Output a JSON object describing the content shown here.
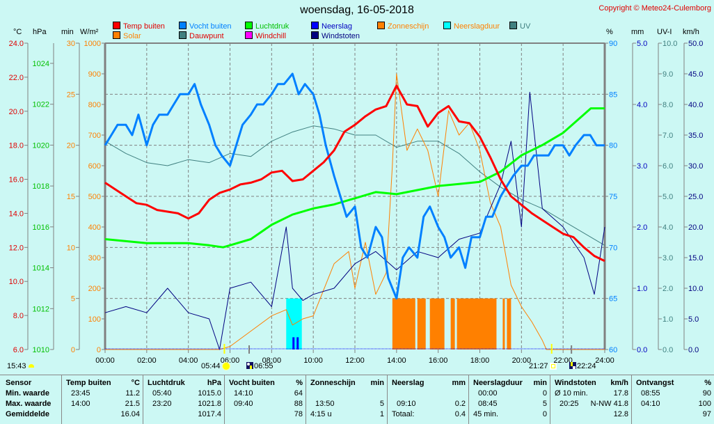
{
  "title": "woensdag, 16-05-2018",
  "copyright": "Copyright © Meteo24-Culemborg",
  "legend": [
    {
      "label": "Temp buiten",
      "color": "#ff0000",
      "text_color": "#e00000"
    },
    {
      "label": "Solar",
      "color": "#ff8000",
      "text_color": "#ff8000"
    },
    {
      "label": "Vocht buiten",
      "color": "#0080ff",
      "text_color": "#0080ff"
    },
    {
      "label": "Dauwpunt",
      "color": "#408080",
      "text_color": "#e00000"
    },
    {
      "label": "Luchtdruk",
      "color": "#00ff00",
      "text_color": "#00c000"
    },
    {
      "label": "Windchill",
      "color": "#ff00ff",
      "text_color": "#e00000"
    },
    {
      "label": "Neerslag",
      "color": "#0000ff",
      "text_color": "#0000c0"
    },
    {
      "label": "Windstoten",
      "color": "#000080",
      "text_color": "#000080"
    },
    {
      "label": "Zonneschijn",
      "color": "#ff8000",
      "text_color": "#ff8000"
    },
    {
      "label": "Neerslagduur",
      "color": "#00ffff",
      "text_color": "#ff8000"
    },
    {
      "label": "UV",
      "color": "#408080",
      "text_color": "#408080"
    }
  ],
  "axes": {
    "temp": {
      "unit": "°C",
      "ticks": [
        "24.0",
        "22.0",
        "20.0",
        "18.0",
        "16.0",
        "14.0",
        "12.0",
        "10.0",
        "8.0",
        "6.0"
      ],
      "range": [
        6,
        24
      ],
      "color": "#e00000"
    },
    "pressure": {
      "unit": "hPa",
      "ticks": [
        "1024",
        "1022",
        "1020",
        "1018",
        "1016",
        "1014",
        "1012",
        "1010"
      ],
      "range": [
        1010,
        1025
      ],
      "color": "#00c000"
    },
    "minutes": {
      "unit": "min",
      "ticks": [
        "30",
        "25",
        "20",
        "15",
        "10",
        "5",
        "0"
      ],
      "range": [
        0,
        30
      ],
      "color": "#ff8000"
    },
    "solar": {
      "unit": "W/m²",
      "ticks": [
        "1000",
        "900",
        "800",
        "700",
        "600",
        "500",
        "400",
        "300",
        "200",
        "100",
        "0"
      ],
      "range": [
        0,
        1000
      ],
      "color": "#ff8000"
    },
    "humidity": {
      "unit": "%",
      "ticks": [
        "90",
        "85",
        "80",
        "75",
        "70",
        "65",
        "60"
      ],
      "range": [
        60,
        90
      ],
      "color": "#0080ff"
    },
    "rain": {
      "unit": "mm",
      "ticks": [
        "5.0",
        "4.0",
        "3.0",
        "2.0",
        "1.0",
        "0.0"
      ],
      "range": [
        0,
        5
      ],
      "color": "#0000c0"
    },
    "uv": {
      "unit": "UV-I",
      "ticks": [
        "10.0",
        "9.0",
        "8.0",
        "7.0",
        "6.0",
        "5.0",
        "4.0",
        "3.0",
        "2.0",
        "1.0",
        "0.0"
      ],
      "range": [
        0,
        10
      ],
      "color": "#408080"
    },
    "wind": {
      "unit": "km/h",
      "ticks": [
        "50.0",
        "45.0",
        "40.0",
        "35.0",
        "30.0",
        "25.0",
        "20.0",
        "15.0",
        "10.0",
        "5.0",
        "0.0"
      ],
      "range": [
        0,
        50
      ],
      "color": "#000080"
    }
  },
  "x_ticks": [
    "00:00",
    "02:00",
    "04:00",
    "06:00",
    "08:00",
    "10:00",
    "12:00",
    "14:00",
    "16:00",
    "18:00",
    "20:00",
    "22:00",
    "24:00"
  ],
  "sun_moon": {
    "moonset_prev": "15:43",
    "sunrise": "05:44",
    "moonrise": "06:55",
    "sunset": "21:27",
    "moonset": "22:24"
  },
  "chart_data": {
    "type": "line",
    "title": "woensdag, 16-05-2018",
    "xlabel": "",
    "x_range_hours": [
      0,
      24
    ],
    "series": [
      {
        "name": "Temp buiten",
        "axis": "temp",
        "unit": "°C",
        "x": [
          0,
          0.5,
          1,
          1.5,
          2,
          2.5,
          3,
          3.5,
          4,
          4.5,
          5,
          5.5,
          6,
          6.5,
          7,
          7.5,
          8,
          8.5,
          9,
          9.5,
          10,
          10.5,
          11,
          11.5,
          12,
          12.5,
          13,
          13.5,
          14,
          14.5,
          15,
          15.5,
          16,
          16.5,
          17,
          17.5,
          18,
          18.5,
          19,
          19.5,
          20,
          20.5,
          21,
          21.5,
          22,
          22.5,
          23,
          23.5,
          24
        ],
        "y": [
          15.8,
          15.4,
          15.0,
          14.6,
          14.5,
          14.2,
          14.1,
          14.0,
          13.7,
          14.0,
          14.8,
          15.2,
          15.4,
          15.7,
          15.8,
          16.0,
          16.4,
          16.5,
          15.9,
          16.0,
          16.5,
          17.0,
          17.7,
          18.8,
          19.2,
          19.7,
          20.1,
          20.3,
          21.5,
          20.4,
          20.3,
          19.1,
          19.9,
          20.3,
          19.4,
          19.3,
          18.5,
          17.3,
          16.0,
          15.0,
          14.5,
          14.0,
          13.6,
          13.2,
          12.8,
          12.6,
          12.0,
          11.5,
          11.2
        ]
      },
      {
        "name": "Vocht buiten",
        "axis": "humidity",
        "unit": "%",
        "x": [
          0,
          0.3,
          0.6,
          1,
          1.3,
          1.6,
          2,
          2.3,
          2.6,
          3,
          3.3,
          3.6,
          4,
          4.3,
          4.6,
          5,
          5.3,
          5.6,
          6,
          6.3,
          6.6,
          7,
          7.3,
          7.6,
          8,
          8.3,
          8.6,
          9,
          9.3,
          9.6,
          10,
          10.3,
          10.6,
          11,
          11.3,
          11.6,
          12,
          12.3,
          12.6,
          13,
          13.3,
          13.6,
          14,
          14.3,
          14.6,
          15,
          15.3,
          15.6,
          16,
          16.3,
          16.6,
          17,
          17.3,
          17.6,
          18,
          18.3,
          18.6,
          19,
          19.3,
          19.6,
          20,
          20.3,
          20.6,
          21,
          21.3,
          21.6,
          22,
          22.3,
          22.6,
          23,
          23.3,
          23.6,
          24
        ],
        "y": [
          80,
          81,
          82,
          82,
          81,
          83,
          80,
          82,
          83,
          83,
          84,
          85,
          85,
          86,
          84,
          82,
          80,
          79,
          78,
          80,
          82,
          83,
          84,
          84,
          85,
          86,
          86,
          87,
          85,
          86,
          85,
          83,
          80,
          77,
          75,
          73,
          74,
          70,
          69,
          72,
          71,
          67,
          65,
          69,
          70,
          69,
          73,
          74,
          72,
          71,
          69,
          70,
          68,
          71,
          71,
          73,
          73,
          75,
          76,
          77,
          78,
          78,
          79,
          79,
          79,
          80,
          80,
          79,
          80,
          81,
          81,
          80,
          80
        ]
      },
      {
        "name": "Luchtdruk",
        "axis": "pressure",
        "unit": "hPa",
        "x": [
          0,
          1,
          2,
          3,
          4,
          5,
          5.67,
          6,
          7,
          8,
          9,
          10,
          11,
          12,
          13,
          14,
          15,
          16,
          17,
          18,
          19,
          20,
          21,
          22,
          23,
          23.33,
          24
        ],
        "y": [
          1015.4,
          1015.3,
          1015.2,
          1015.2,
          1015.2,
          1015.1,
          1015.0,
          1015.1,
          1015.4,
          1016.1,
          1016.6,
          1016.9,
          1017.1,
          1017.4,
          1017.7,
          1017.6,
          1017.8,
          1018.0,
          1018.1,
          1018.2,
          1018.7,
          1019.5,
          1020.0,
          1020.6,
          1021.5,
          1021.8,
          1021.8
        ]
      },
      {
        "name": "Dauwpunt",
        "axis": "uv_scale_line",
        "unit": "",
        "x": [
          0,
          1,
          2,
          3,
          4,
          5,
          6,
          7,
          8,
          9,
          10,
          11,
          12,
          13,
          14,
          15,
          16,
          17,
          18,
          19,
          20,
          21,
          22,
          23,
          24
        ],
        "y": [
          6.8,
          6.4,
          6.1,
          6.0,
          6.2,
          6.1,
          6.4,
          6.3,
          6.8,
          7.1,
          7.3,
          7.2,
          7.0,
          7.0,
          6.6,
          6.8,
          6.8,
          6.4,
          5.8,
          5.3,
          4.9,
          4.6,
          4.2,
          3.8,
          3.4
        ]
      },
      {
        "name": "Solar",
        "axis": "solar",
        "unit": "W/m²",
        "x": [
          0,
          5.5,
          6,
          7,
          8,
          8.7,
          9,
          9.5,
          10,
          11,
          11.7,
          12,
          12.5,
          13,
          13.5,
          13.8,
          14,
          14.5,
          15,
          15.5,
          16,
          16.5,
          17,
          17.5,
          18,
          18.5,
          19,
          19.5,
          20,
          20.5,
          21,
          21.2,
          24
        ],
        "y": [
          0,
          0,
          10,
          60,
          110,
          130,
          80,
          100,
          110,
          280,
          320,
          200,
          350,
          180,
          250,
          600,
          900,
          650,
          720,
          650,
          500,
          780,
          700,
          740,
          650,
          480,
          400,
          210,
          140,
          90,
          30,
          0,
          0
        ]
      },
      {
        "name": "Windstoten",
        "axis": "wind",
        "unit": "km/h",
        "x": [
          0,
          1,
          2,
          3,
          4,
          5,
          5.5,
          6,
          7,
          8,
          8.7,
          9,
          9.5,
          10,
          11,
          12,
          13,
          14,
          15,
          16,
          17,
          18,
          19,
          19.5,
          20,
          20.4,
          21,
          22,
          23,
          23.5,
          24
        ],
        "y": [
          6,
          7,
          6,
          10,
          6,
          5,
          0,
          10,
          11,
          7,
          20,
          10,
          8,
          9,
          10,
          14,
          16,
          13,
          16,
          15,
          18,
          19,
          27,
          34,
          20,
          42,
          23,
          20,
          15,
          9,
          20
        ]
      },
      {
        "name": "Zonneschijn",
        "axis": "minutes",
        "unit": "min",
        "bars": [
          [
            13.8,
            14.9,
            5
          ],
          [
            15.0,
            15.4,
            5
          ],
          [
            15.6,
            16.3,
            5
          ],
          [
            16.6,
            16.8,
            5
          ],
          [
            16.9,
            18.8,
            5
          ],
          [
            19.1,
            19.2,
            5
          ],
          [
            19.3,
            19.5,
            5
          ]
        ]
      },
      {
        "name": "Neerslagduur",
        "axis": "minutes",
        "unit": "min",
        "bars": [
          [
            8.7,
            9.45,
            5
          ]
        ]
      },
      {
        "name": "Neerslag",
        "axis": "rain",
        "unit": "mm",
        "bars": [
          [
            9.0,
            9.1,
            0.2
          ],
          [
            9.2,
            9.3,
            0.2
          ]
        ]
      }
    ]
  },
  "stats": {
    "columns": [
      {
        "header": "Sensor",
        "unit": "",
        "rows": [
          [
            "Min. waarde",
            ""
          ],
          [
            "Max. waarde",
            ""
          ],
          [
            "Gemiddelde",
            ""
          ]
        ]
      },
      {
        "header": "Temp buiten",
        "unit": "°C",
        "rows": [
          [
            "23:45",
            "11.2"
          ],
          [
            "14:00",
            "21.5"
          ],
          [
            "",
            "16.04"
          ]
        ]
      },
      {
        "header": "Luchtdruk",
        "unit": "hPa",
        "rows": [
          [
            "05:40",
            "1015.0"
          ],
          [
            "23:20",
            "1021.8"
          ],
          [
            "",
            "1017.4"
          ]
        ]
      },
      {
        "header": "Vocht buiten",
        "unit": "%",
        "rows": [
          [
            "14:10",
            "64"
          ],
          [
            "09:40",
            "88"
          ],
          [
            "",
            "78"
          ]
        ]
      },
      {
        "header": "Zonneschijn",
        "unit": "min",
        "rows": [
          [
            "",
            ""
          ],
          [
            "13:50",
            "5"
          ],
          [
            "4:15 u",
            "1"
          ]
        ]
      },
      {
        "header": "Neerslag",
        "unit": "mm",
        "rows": [
          [
            "",
            ""
          ],
          [
            "09:10",
            "0.2"
          ],
          [
            "Totaal:",
            "0.4"
          ]
        ]
      },
      {
        "header": "Neerslagduur",
        "unit": "min",
        "rows": [
          [
            "00:00",
            "0"
          ],
          [
            "08:45",
            "5"
          ],
          [
            "45 min.",
            "0"
          ]
        ]
      },
      {
        "header": "Windstoten",
        "unit": "km/h",
        "rows": [
          [
            "Ø 10 min.",
            "17.8"
          ],
          [
            "20:25",
            "N-NW 41.8"
          ],
          [
            "",
            "12.8"
          ]
        ]
      },
      {
        "header": "Ontvangst",
        "unit": "%",
        "rows": [
          [
            "08:55",
            "90"
          ],
          [
            "04:10",
            "100"
          ],
          [
            "",
            "97"
          ]
        ]
      }
    ]
  }
}
